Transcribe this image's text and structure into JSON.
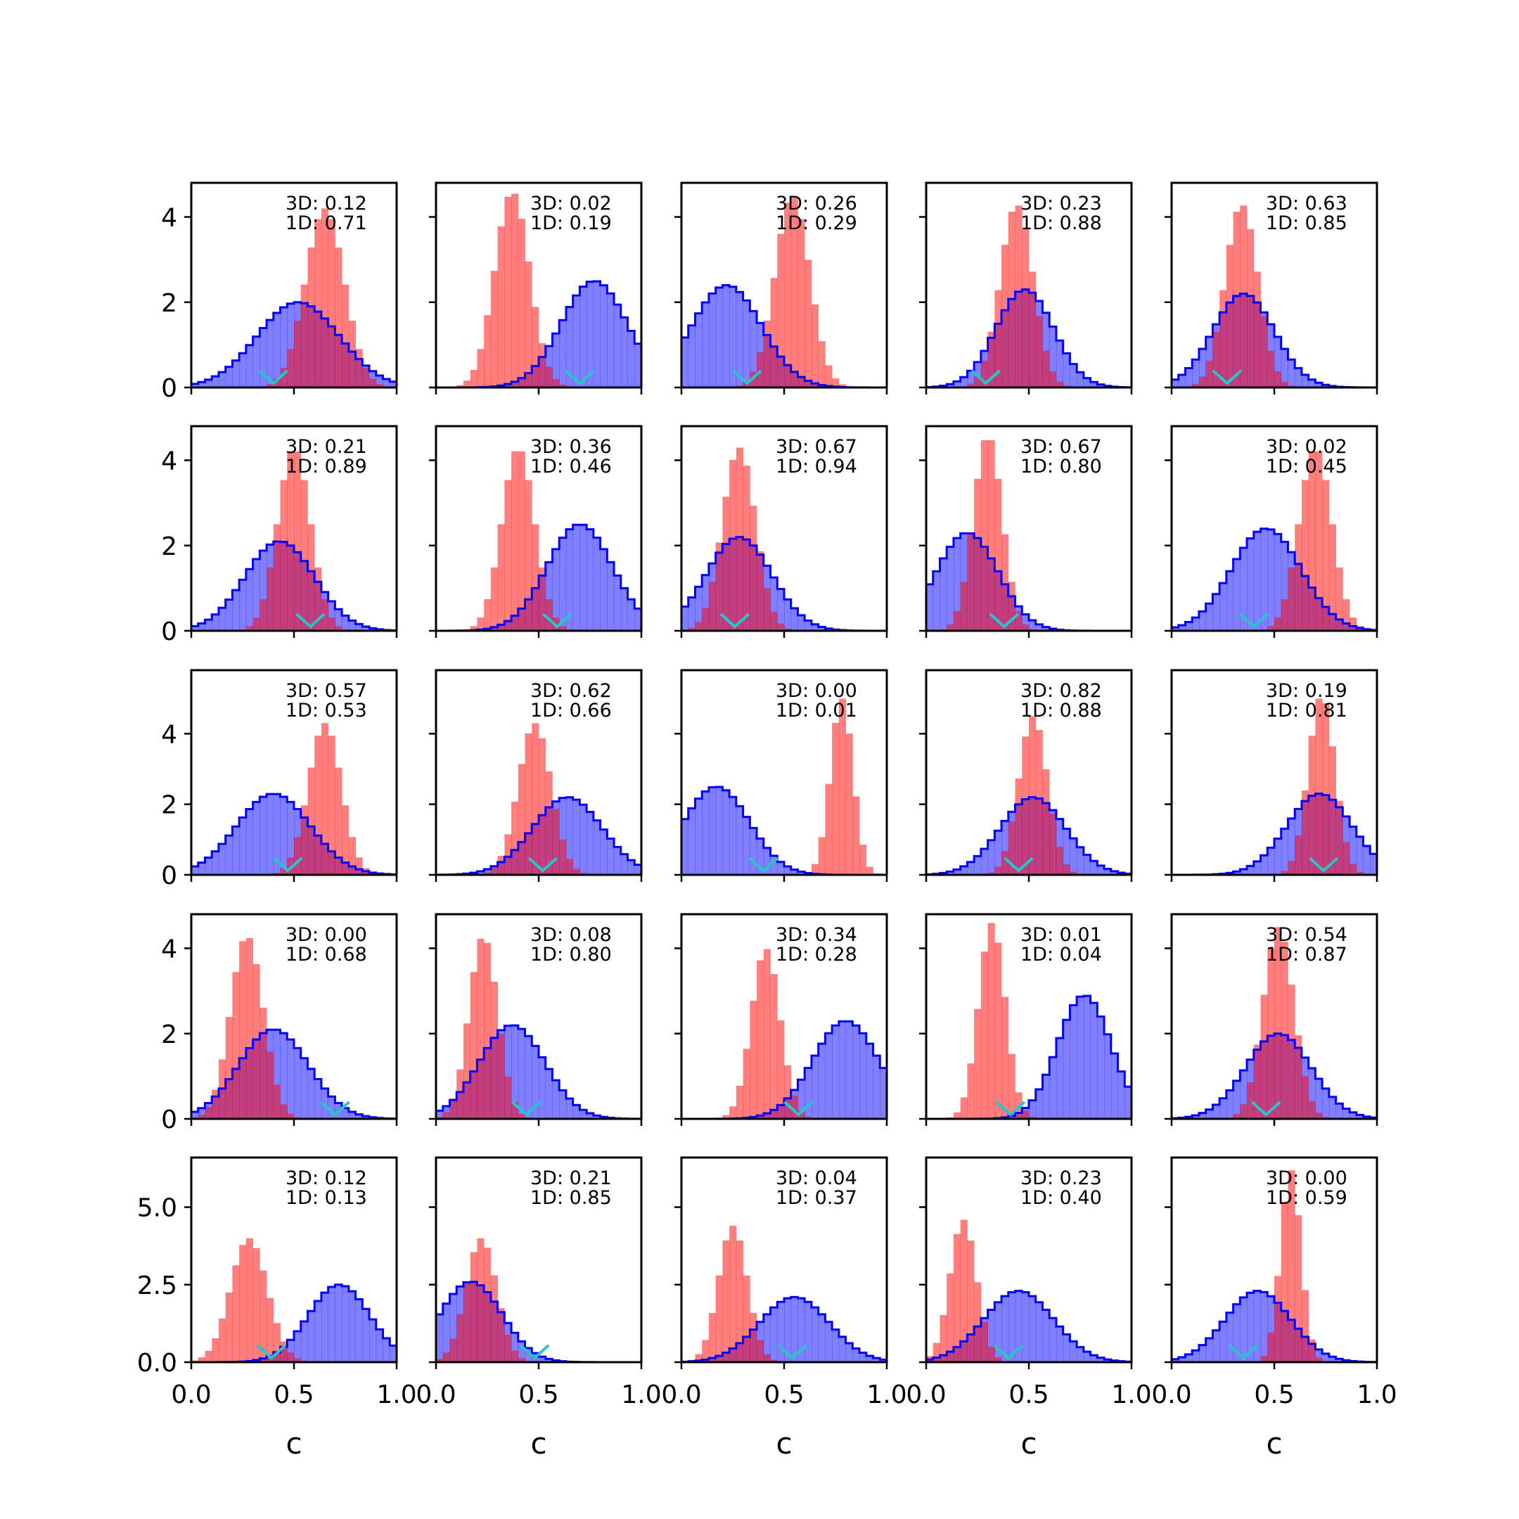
{
  "figure": {
    "colors": {
      "series_a": "#0000ff",
      "series_a_fill": "#8080ff",
      "series_b": "#ff8080",
      "marker": "#26c6c6",
      "overlap": "#c0407f"
    }
  },
  "chart_data": {
    "type": "histogram-grid",
    "rows": 5,
    "cols": 5,
    "xlim": [
      0,
      1
    ],
    "x_ticks": [
      "0.0",
      "0.5",
      "1.0"
    ],
    "xlabel": "c",
    "row_ylims": [
      [
        0,
        4.8
      ],
      [
        0,
        4.8
      ],
      [
        0,
        5.8
      ],
      [
        0,
        4.8
      ],
      [
        0,
        6.6
      ]
    ],
    "row_yticks": [
      [
        "0",
        "2",
        "4"
      ],
      [
        "0",
        "2",
        "4"
      ],
      [
        "0",
        "2",
        "4"
      ],
      [
        "0",
        "2",
        "4"
      ],
      [
        "0.0",
        "2.5",
        "5.0"
      ]
    ],
    "panels": [
      {
        "label_3d": "3D: 0.12",
        "label_1d": "1D: 0.71",
        "blue": {
          "mu": 0.52,
          "sd": 0.2,
          "peak": 2.0
        },
        "red": {
          "mu": 0.65,
          "sd": 0.095,
          "peak": 4.2
        },
        "marker": 0.4
      },
      {
        "label_3d": "3D: 0.02",
        "label_1d": "1D: 0.19",
        "blue": {
          "mu": 0.77,
          "sd": 0.16,
          "peak": 2.5
        },
        "red": {
          "mu": 0.37,
          "sd": 0.085,
          "peak": 4.6
        },
        "marker": 0.7
      },
      {
        "label_3d": "3D: 0.26",
        "label_1d": "1D: 0.29",
        "blue": {
          "mu": 0.22,
          "sd": 0.17,
          "peak": 2.4
        },
        "red": {
          "mu": 0.54,
          "sd": 0.085,
          "peak": 4.5
        },
        "marker": 0.32
      },
      {
        "label_3d": "3D: 0.23",
        "label_1d": "1D: 0.88",
        "blue": {
          "mu": 0.48,
          "sd": 0.14,
          "peak": 2.3
        },
        "red": {
          "mu": 0.44,
          "sd": 0.08,
          "peak": 4.3
        },
        "marker": 0.29
      },
      {
        "label_3d": "3D: 0.63",
        "label_1d": "1D: 0.85",
        "blue": {
          "mu": 0.35,
          "sd": 0.15,
          "peak": 2.2
        },
        "red": {
          "mu": 0.34,
          "sd": 0.08,
          "peak": 4.3
        },
        "marker": 0.27
      },
      {
        "label_3d": "3D: 0.21",
        "label_1d": "1D: 0.89",
        "blue": {
          "mu": 0.43,
          "sd": 0.17,
          "peak": 2.1
        },
        "red": {
          "mu": 0.5,
          "sd": 0.08,
          "peak": 4.3
        },
        "marker": 0.58
      },
      {
        "label_3d": "3D: 0.36",
        "label_1d": "1D: 0.46",
        "blue": {
          "mu": 0.7,
          "sd": 0.16,
          "peak": 2.5
        },
        "red": {
          "mu": 0.4,
          "sd": 0.08,
          "peak": 4.3
        },
        "marker": 0.59
      },
      {
        "label_3d": "3D: 0.67",
        "label_1d": "1D: 0.94",
        "blue": {
          "mu": 0.28,
          "sd": 0.16,
          "peak": 2.2
        },
        "red": {
          "mu": 0.28,
          "sd": 0.08,
          "peak": 4.3
        },
        "marker": 0.26
      },
      {
        "label_3d": "3D: 0.67",
        "label_1d": "1D: 0.80",
        "blue": {
          "mu": 0.2,
          "sd": 0.15,
          "peak": 2.3
        },
        "red": {
          "mu": 0.3,
          "sd": 0.07,
          "peak": 4.6
        },
        "marker": 0.38
      },
      {
        "label_3d": "3D: 0.02",
        "label_1d": "1D: 0.45",
        "blue": {
          "mu": 0.46,
          "sd": 0.17,
          "peak": 2.4
        },
        "red": {
          "mu": 0.7,
          "sd": 0.08,
          "peak": 4.3
        },
        "marker": 0.4
      },
      {
        "label_3d": "3D: 0.57",
        "label_1d": "1D: 0.53",
        "blue": {
          "mu": 0.4,
          "sd": 0.18,
          "peak": 2.3
        },
        "red": {
          "mu": 0.65,
          "sd": 0.08,
          "peak": 4.3
        },
        "marker": 0.47
      },
      {
        "label_3d": "3D: 0.62",
        "label_1d": "1D: 0.66",
        "blue": {
          "mu": 0.64,
          "sd": 0.17,
          "peak": 2.2
        },
        "red": {
          "mu": 0.48,
          "sd": 0.08,
          "peak": 4.3
        },
        "marker": 0.52
      },
      {
        "label_3d": "3D: 0.00",
        "label_1d": "1D: 0.01",
        "blue": {
          "mu": 0.17,
          "sd": 0.16,
          "peak": 2.5
        },
        "red": {
          "mu": 0.78,
          "sd": 0.055,
          "peak": 5.0
        },
        "marker": 0.4
      },
      {
        "label_3d": "3D: 0.82",
        "label_1d": "1D: 0.88",
        "blue": {
          "mu": 0.52,
          "sd": 0.16,
          "peak": 2.2
        },
        "red": {
          "mu": 0.52,
          "sd": 0.07,
          "peak": 4.5
        },
        "marker": 0.45
      },
      {
        "label_3d": "3D: 0.19",
        "label_1d": "1D: 0.81",
        "blue": {
          "mu": 0.72,
          "sd": 0.16,
          "peak": 2.3
        },
        "red": {
          "mu": 0.73,
          "sd": 0.065,
          "peak": 5.1
        },
        "marker": 0.74
      },
      {
        "label_3d": "3D: 0.00",
        "label_1d": "1D: 0.68",
        "blue": {
          "mu": 0.4,
          "sd": 0.17,
          "peak": 2.1
        },
        "red": {
          "mu": 0.27,
          "sd": 0.08,
          "peak": 4.3
        },
        "marker": 0.7
      },
      {
        "label_3d": "3D: 0.08",
        "label_1d": "1D: 0.80",
        "blue": {
          "mu": 0.37,
          "sd": 0.16,
          "peak": 2.2
        },
        "red": {
          "mu": 0.23,
          "sd": 0.07,
          "peak": 4.3
        },
        "marker": 0.44
      },
      {
        "label_3d": "3D: 0.34",
        "label_1d": "1D: 0.28",
        "blue": {
          "mu": 0.8,
          "sd": 0.16,
          "peak": 2.3
        },
        "red": {
          "mu": 0.41,
          "sd": 0.07,
          "peak": 4.0
        },
        "marker": 0.57
      },
      {
        "label_3d": "3D: 0.01",
        "label_1d": "1D: 0.04",
        "blue": {
          "mu": 0.77,
          "sd": 0.13,
          "peak": 2.9
        },
        "red": {
          "mu": 0.32,
          "sd": 0.065,
          "peak": 4.6
        },
        "marker": 0.41
      },
      {
        "label_3d": "3D: 0.54",
        "label_1d": "1D: 0.87",
        "blue": {
          "mu": 0.52,
          "sd": 0.16,
          "peak": 2.0
        },
        "red": {
          "mu": 0.52,
          "sd": 0.075,
          "peak": 4.5
        },
        "marker": 0.46
      },
      {
        "label_3d": "3D: 0.12",
        "label_1d": "1D: 0.13",
        "blue": {
          "mu": 0.72,
          "sd": 0.15,
          "peak": 2.5
        },
        "red": {
          "mu": 0.28,
          "sd": 0.09,
          "peak": 4.0
        },
        "marker": 0.39
      },
      {
        "label_3d": "3D: 0.21",
        "label_1d": "1D: 0.85",
        "blue": {
          "mu": 0.17,
          "sd": 0.15,
          "peak": 2.6
        },
        "red": {
          "mu": 0.22,
          "sd": 0.075,
          "peak": 4.0
        },
        "marker": 0.48
      },
      {
        "label_3d": "3D: 0.04",
        "label_1d": "1D: 0.37",
        "blue": {
          "mu": 0.55,
          "sd": 0.17,
          "peak": 2.1
        },
        "red": {
          "mu": 0.25,
          "sd": 0.07,
          "peak": 4.4
        },
        "marker": 0.54
      },
      {
        "label_3d": "3D: 0.23",
        "label_1d": "1D: 0.40",
        "blue": {
          "mu": 0.45,
          "sd": 0.17,
          "peak": 2.3
        },
        "red": {
          "mu": 0.18,
          "sd": 0.065,
          "peak": 4.6
        },
        "marker": 0.4
      },
      {
        "label_3d": "3D: 0.00",
        "label_1d": "1D: 0.59",
        "blue": {
          "mu": 0.42,
          "sd": 0.16,
          "peak": 2.3
        },
        "red": {
          "mu": 0.58,
          "sd": 0.05,
          "peak": 6.2
        },
        "marker": 0.35
      }
    ]
  }
}
